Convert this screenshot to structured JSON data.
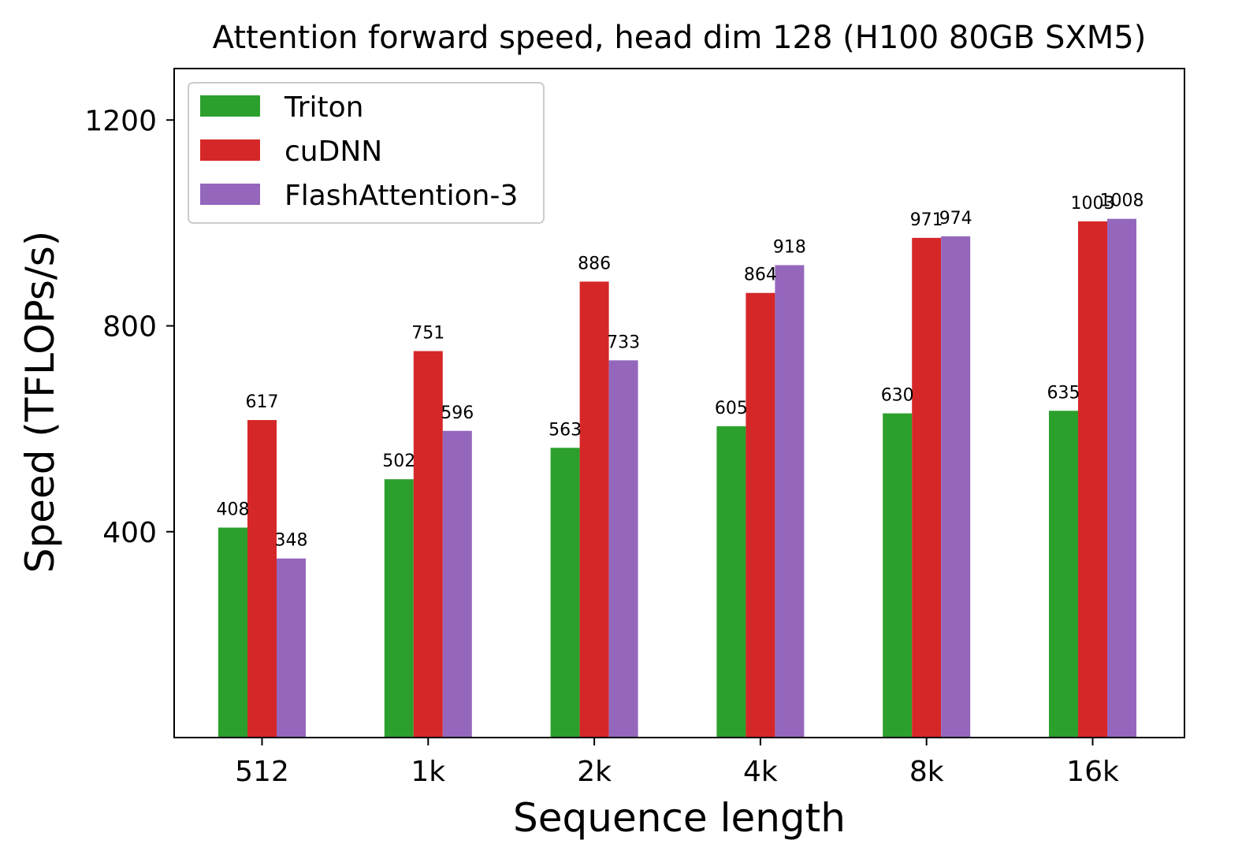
{
  "chart_data": {
    "type": "bar",
    "title": "Attention forward speed, head dim 128 (H100 80GB SXM5)",
    "xlabel": "Sequence length",
    "ylabel": "Speed (TFLOPs/s)",
    "categories": [
      "512",
      "1k",
      "2k",
      "4k",
      "8k",
      "16k"
    ],
    "series": [
      {
        "name": "Triton",
        "color": "#2ca02c",
        "values": [
          408,
          502,
          563,
          605,
          630,
          635
        ]
      },
      {
        "name": "cuDNN",
        "color": "#d62728",
        "values": [
          617,
          751,
          886,
          864,
          971,
          1003
        ]
      },
      {
        "name": "FlashAttention-3",
        "color": "#9467bd",
        "values": [
          348,
          596,
          733,
          918,
          974,
          1008
        ]
      }
    ],
    "ylim": [
      0,
      1300
    ],
    "yticks": [
      400,
      800,
      1200
    ],
    "grid": false,
    "legend": "top-left",
    "data_labels": true
  }
}
